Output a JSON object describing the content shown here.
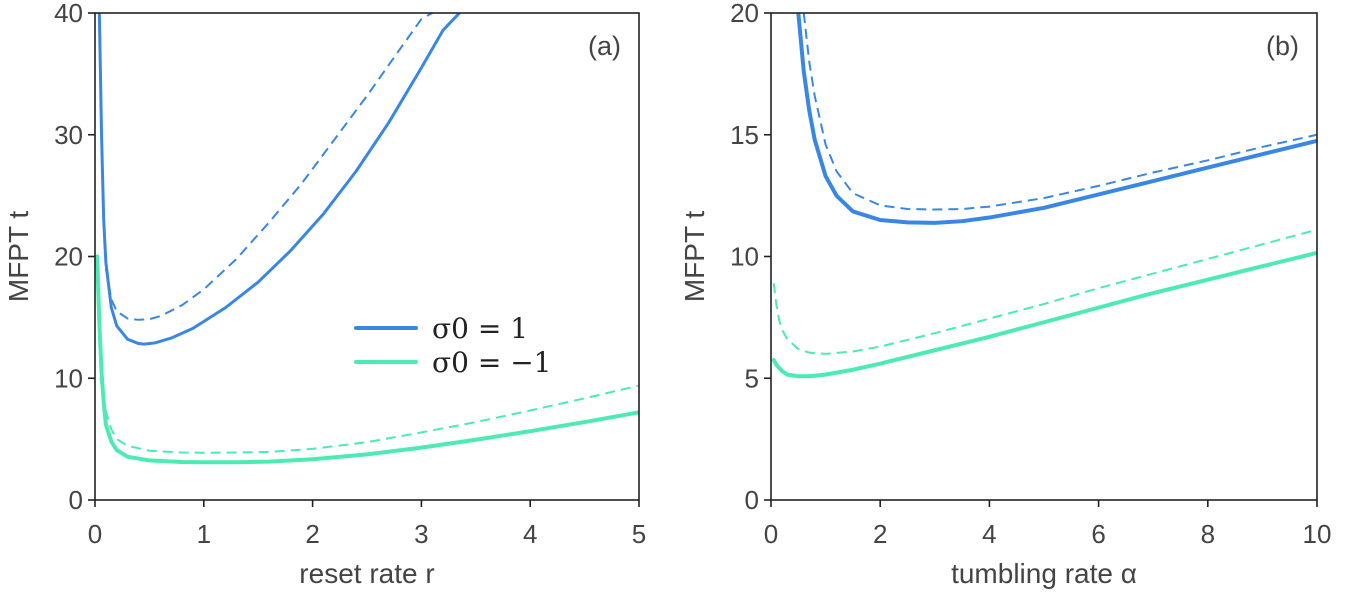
{
  "colors": {
    "blue": "#3a87e3",
    "green": "#4deab3"
  },
  "legend": {
    "entries": [
      {
        "label": "σ0 = 1",
        "color": "#3a87e3"
      },
      {
        "label": "σ0 = −1",
        "color": "#4deab3"
      }
    ]
  },
  "chart_data": [
    {
      "type": "line",
      "panel_label": "(a)",
      "xlabel": "reset rate r",
      "ylabel": "MFPT t",
      "xlim": [
        0,
        5
      ],
      "ylim": [
        0,
        40
      ],
      "xticks": [
        0,
        1,
        2,
        3,
        4,
        5
      ],
      "yticks": [
        0,
        10,
        20,
        30,
        40
      ],
      "series": [
        {
          "name": "σ0 = 1 (solid)",
          "color": "#3a87e3",
          "dash": false,
          "width": 3,
          "x": [
            0.04,
            0.06,
            0.08,
            0.1,
            0.15,
            0.2,
            0.3,
            0.4,
            0.45,
            0.55,
            0.7,
            0.9,
            1.2,
            1.5,
            1.8,
            2.1,
            2.4,
            2.7,
            3.0,
            3.2,
            3.35
          ],
          "y": [
            40,
            30,
            23,
            19.5,
            15.8,
            14.3,
            13.2,
            12.85,
            12.8,
            12.9,
            13.3,
            14.1,
            15.8,
            17.9,
            20.5,
            23.5,
            27.0,
            31.0,
            35.5,
            38.6,
            40
          ]
        },
        {
          "name": "σ0 = 1 (dashed)",
          "color": "#3a87e3",
          "dash": true,
          "width": 2,
          "x": [
            0.1,
            0.15,
            0.2,
            0.3,
            0.4,
            0.5,
            0.6,
            0.8,
            1.0,
            1.3,
            1.6,
            1.9,
            2.2,
            2.5,
            2.8,
            3.0,
            3.1
          ],
          "y": [
            19.0,
            16.5,
            15.5,
            14.9,
            14.8,
            14.85,
            15.1,
            16.0,
            17.3,
            19.8,
            22.8,
            26.0,
            29.6,
            33.2,
            37.0,
            39.5,
            40
          ]
        },
        {
          "name": "σ0 = −1 (solid)",
          "color": "#4deab3",
          "dash": false,
          "width": 4,
          "x": [
            0.02,
            0.04,
            0.06,
            0.08,
            0.1,
            0.15,
            0.2,
            0.3,
            0.5,
            0.8,
            1.0,
            1.3,
            1.6,
            2.0,
            2.5,
            3.0,
            3.5,
            4.0,
            4.5,
            5.0
          ],
          "y": [
            20.0,
            14.5,
            10.5,
            8.0,
            6.2,
            4.8,
            4.1,
            3.55,
            3.25,
            3.12,
            3.1,
            3.1,
            3.15,
            3.35,
            3.75,
            4.3,
            4.95,
            5.65,
            6.4,
            7.2
          ]
        },
        {
          "name": "σ0 = −1 (dashed)",
          "color": "#4deab3",
          "dash": true,
          "width": 2,
          "x": [
            0.05,
            0.1,
            0.15,
            0.2,
            0.3,
            0.5,
            0.8,
            1.0,
            1.3,
            1.6,
            2.0,
            2.5,
            3.0,
            3.5,
            4.0,
            4.5,
            5.0
          ],
          "y": [
            10.0,
            7.3,
            5.8,
            5.0,
            4.45,
            4.05,
            3.9,
            3.88,
            3.9,
            3.95,
            4.2,
            4.75,
            5.55,
            6.4,
            7.35,
            8.35,
            9.4
          ]
        }
      ]
    },
    {
      "type": "line",
      "panel_label": "(b)",
      "xlabel": "tumbling rate α",
      "ylabel": "MFPT t",
      "xlim": [
        0,
        10
      ],
      "ylim": [
        0,
        20
      ],
      "xticks": [
        0,
        2,
        4,
        6,
        8,
        10
      ],
      "yticks": [
        0,
        5,
        10,
        15,
        20
      ],
      "series": [
        {
          "name": "σ0 = 1 (solid)",
          "color": "#3a87e3",
          "dash": false,
          "width": 4,
          "x": [
            0.5,
            0.6,
            0.7,
            0.8,
            1.0,
            1.2,
            1.5,
            2.0,
            2.5,
            3.0,
            3.5,
            4.0,
            5.0,
            6.0,
            7.0,
            8.0,
            9.0,
            10.0
          ],
          "y": [
            20,
            17.6,
            16.0,
            14.8,
            13.3,
            12.5,
            11.85,
            11.5,
            11.4,
            11.38,
            11.45,
            11.6,
            12.0,
            12.55,
            13.1,
            13.65,
            14.2,
            14.75
          ]
        },
        {
          "name": "σ0 = 1 (dashed)",
          "color": "#3a87e3",
          "dash": true,
          "width": 2,
          "x": [
            0.6,
            0.7,
            0.8,
            1.0,
            1.2,
            1.5,
            2.0,
            2.5,
            3.0,
            3.5,
            4.0,
            5.0,
            6.0,
            7.0,
            8.0,
            9.0,
            10.0
          ],
          "y": [
            20,
            18.0,
            16.6,
            14.6,
            13.5,
            12.6,
            12.1,
            11.95,
            11.93,
            11.95,
            12.05,
            12.4,
            12.9,
            13.45,
            13.95,
            14.5,
            15.0
          ]
        },
        {
          "name": "σ0 = −1 (solid)",
          "color": "#4deab3",
          "dash": false,
          "width": 4,
          "x": [
            0.05,
            0.1,
            0.2,
            0.3,
            0.5,
            0.7,
            1.0,
            1.5,
            2.0,
            3.0,
            4.0,
            5.0,
            6.0,
            7.0,
            8.0,
            9.0,
            10.0
          ],
          "y": [
            5.75,
            5.55,
            5.3,
            5.15,
            5.08,
            5.08,
            5.15,
            5.35,
            5.6,
            6.15,
            6.7,
            7.3,
            7.9,
            8.5,
            9.05,
            9.6,
            10.15
          ]
        },
        {
          "name": "σ0 = −1 (dashed)",
          "color": "#4deab3",
          "dash": true,
          "width": 2,
          "x": [
            0.05,
            0.1,
            0.15,
            0.2,
            0.3,
            0.5,
            0.7,
            1.0,
            1.5,
            2.0,
            3.0,
            4.0,
            5.0,
            6.0,
            7.0,
            8.0,
            9.0,
            10.0
          ],
          "y": [
            8.9,
            8.0,
            7.4,
            7.0,
            6.6,
            6.2,
            6.05,
            6.0,
            6.1,
            6.3,
            6.85,
            7.45,
            8.05,
            8.7,
            9.3,
            9.9,
            10.5,
            11.1
          ]
        }
      ]
    }
  ]
}
